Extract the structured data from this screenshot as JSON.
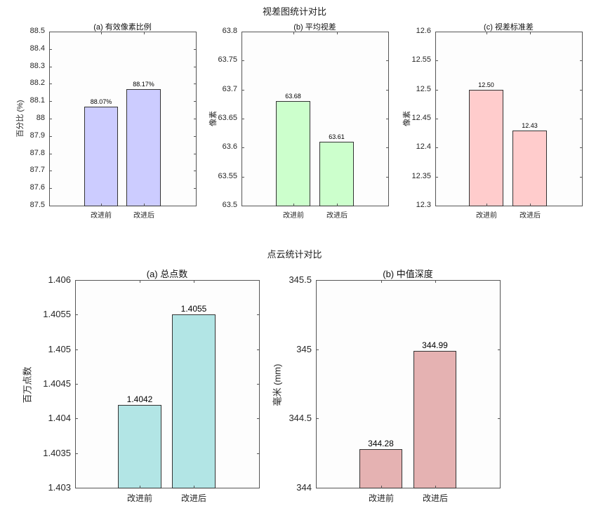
{
  "figure_top": {
    "title": "视差图统计对比"
  },
  "figure_bottom": {
    "title": "点云统计对比"
  },
  "chart_data": [
    {
      "type": "bar",
      "group": "视差图统计对比",
      "title": "(a) 有效像素比例",
      "xlabel": "",
      "ylabel": "百分比 (%)",
      "categories": [
        "改进前",
        "改进后"
      ],
      "values": [
        88.07,
        88.17
      ],
      "value_labels": [
        "88.07%",
        "88.17%"
      ],
      "ylim": [
        87.5,
        88.5
      ],
      "yticks": [
        "88.5",
        "88.4",
        "88.3",
        "88.2",
        "88.1",
        "88",
        "87.9",
        "87.8",
        "87.7",
        "87.6",
        "87.5"
      ],
      "color": "#ccccff",
      "grid": false,
      "legend": null
    },
    {
      "type": "bar",
      "group": "视差图统计对比",
      "title": "(b) 平均视差",
      "xlabel": "",
      "ylabel": "像素",
      "categories": [
        "改进前",
        "改进后"
      ],
      "values": [
        63.68,
        63.61
      ],
      "value_labels": [
        "63.68",
        "63.61"
      ],
      "ylim": [
        63.5,
        63.8
      ],
      "yticks": [
        "63.8",
        "63.75",
        "63.7",
        "63.65",
        "63.6",
        "63.55",
        "63.5"
      ],
      "color": "#ccffcc",
      "grid": false,
      "legend": null
    },
    {
      "type": "bar",
      "group": "视差图统计对比",
      "title": "(c) 视差标准差",
      "xlabel": "",
      "ylabel": "像素",
      "categories": [
        "改进前",
        "改进后"
      ],
      "values": [
        12.5,
        12.43
      ],
      "value_labels": [
        "12.50",
        "12.43"
      ],
      "ylim": [
        12.3,
        12.6
      ],
      "yticks": [
        "12.6",
        "12.55",
        "12.5",
        "12.45",
        "12.4",
        "12.35",
        "12.3"
      ],
      "color": "#ffcccc",
      "grid": false,
      "legend": null
    },
    {
      "type": "bar",
      "group": "点云统计对比",
      "title": "(a) 总点数",
      "xlabel": "",
      "ylabel": "百万点数",
      "categories": [
        "改进前",
        "改进后"
      ],
      "values": [
        1.4042,
        1.4055
      ],
      "value_labels": [
        "1.4042",
        "1.4055"
      ],
      "ylim": [
        1.403,
        1.406
      ],
      "yticks": [
        "1.406",
        "1.4055",
        "1.405",
        "1.4045",
        "1.404",
        "1.4035",
        "1.403"
      ],
      "color": "#b2e5e5",
      "grid": false,
      "legend": null
    },
    {
      "type": "bar",
      "group": "点云统计对比",
      "title": "(b) 中值深度",
      "xlabel": "",
      "ylabel": "毫米 (mm)",
      "categories": [
        "改进前",
        "改进后"
      ],
      "values": [
        344.28,
        344.99
      ],
      "value_labels": [
        "344.28",
        "344.99"
      ],
      "ylim": [
        344,
        345.5
      ],
      "yticks": [
        "345.5",
        "345",
        "344.5",
        "344"
      ],
      "color": "#e5b2b2",
      "grid": false,
      "legend": null
    }
  ]
}
